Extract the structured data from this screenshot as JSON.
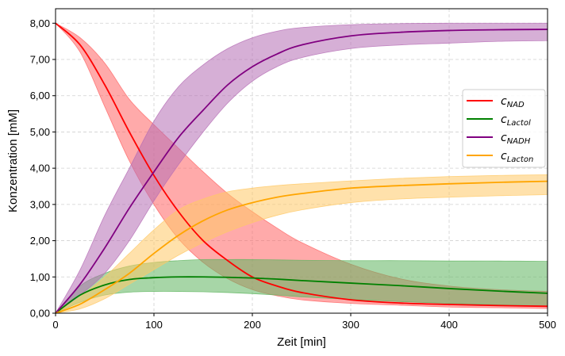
{
  "chart_data": {
    "type": "line",
    "xlabel": "Zeit [min]",
    "ylabel": "Konzentration [mM]",
    "xlim": [
      0,
      500
    ],
    "ylim": [
      0,
      8.4
    ],
    "grid": true,
    "grid_style": "dashed",
    "legend_position": "right",
    "x_ticks": [
      0,
      100,
      200,
      300,
      400,
      500
    ],
    "x_tick_labels": [
      "0",
      "100",
      "200",
      "300",
      "400",
      "500"
    ],
    "y_ticks": [
      0,
      1,
      2,
      3,
      4,
      5,
      6,
      7,
      8
    ],
    "y_tick_labels": [
      "0,00",
      "1,00",
      "2,00",
      "3,00",
      "4,00",
      "5,00",
      "6,00",
      "7,00",
      "8,00"
    ],
    "x": [
      0,
      25,
      50,
      75,
      100,
      125,
      150,
      175,
      200,
      225,
      250,
      300,
      350,
      400,
      450,
      500
    ],
    "series": [
      {
        "name": "c",
        "subscript": "NAD",
        "color": "#ff0000",
        "band_color": "#ff6464",
        "values": [
          8.0,
          7.4,
          6.3,
          5.0,
          3.8,
          2.8,
          2.0,
          1.45,
          1.0,
          0.75,
          0.57,
          0.37,
          0.28,
          0.24,
          0.21,
          0.19
        ],
        "lower": [
          8.0,
          7.2,
          5.7,
          4.2,
          3.0,
          2.05,
          1.4,
          0.95,
          0.65,
          0.48,
          0.37,
          0.27,
          0.22,
          0.17,
          0.15,
          0.13
        ],
        "upper": [
          8.0,
          7.6,
          6.9,
          5.9,
          5.2,
          4.55,
          3.9,
          3.3,
          2.8,
          2.35,
          1.95,
          1.35,
          0.95,
          0.75,
          0.65,
          0.6
        ]
      },
      {
        "name": "c",
        "subscript": "Lactol",
        "color": "#008000",
        "band_color": "#5fb55f",
        "values": [
          0.0,
          0.5,
          0.78,
          0.93,
          0.98,
          1.0,
          1.0,
          0.99,
          0.97,
          0.94,
          0.9,
          0.83,
          0.76,
          0.68,
          0.61,
          0.55
        ],
        "lower": [
          0.0,
          0.3,
          0.5,
          0.58,
          0.6,
          0.6,
          0.59,
          0.57,
          0.54,
          0.5,
          0.45,
          0.38,
          0.32,
          0.27,
          0.23,
          0.2
        ],
        "upper": [
          0.0,
          0.75,
          1.1,
          1.3,
          1.4,
          1.45,
          1.48,
          1.48,
          1.48,
          1.47,
          1.46,
          1.45,
          1.45,
          1.44,
          1.44,
          1.43
        ]
      },
      {
        "name": "c",
        "subscript": "NADH",
        "color": "#800080",
        "band_color": "#b56db5",
        "values": [
          0.0,
          0.8,
          1.8,
          2.9,
          3.9,
          4.85,
          5.6,
          6.3,
          6.8,
          7.15,
          7.4,
          7.65,
          7.75,
          7.8,
          7.82,
          7.83
        ],
        "lower": [
          0.0,
          0.5,
          1.1,
          2.0,
          3.1,
          4.1,
          5.0,
          5.8,
          6.4,
          6.8,
          7.05,
          7.3,
          7.4,
          7.45,
          7.5,
          7.52
        ],
        "upper": [
          0.0,
          1.2,
          2.7,
          4.0,
          5.3,
          6.25,
          6.85,
          7.3,
          7.6,
          7.78,
          7.88,
          7.96,
          7.99,
          8.0,
          8.0,
          8.0
        ]
      },
      {
        "name": "c",
        "subscript": "Lacton",
        "color": "#ffa500",
        "band_color": "#ffc966",
        "values": [
          0.0,
          0.25,
          0.65,
          1.1,
          1.65,
          2.15,
          2.55,
          2.85,
          3.05,
          3.2,
          3.3,
          3.45,
          3.52,
          3.57,
          3.61,
          3.64
        ],
        "lower": [
          0.0,
          0.12,
          0.4,
          0.8,
          1.2,
          1.6,
          1.95,
          2.25,
          2.5,
          2.7,
          2.85,
          3.05,
          3.15,
          3.2,
          3.24,
          3.27
        ],
        "upper": [
          0.0,
          0.45,
          1.0,
          1.65,
          2.3,
          2.85,
          3.15,
          3.35,
          3.45,
          3.52,
          3.57,
          3.65,
          3.72,
          3.77,
          3.8,
          3.82
        ]
      }
    ]
  }
}
